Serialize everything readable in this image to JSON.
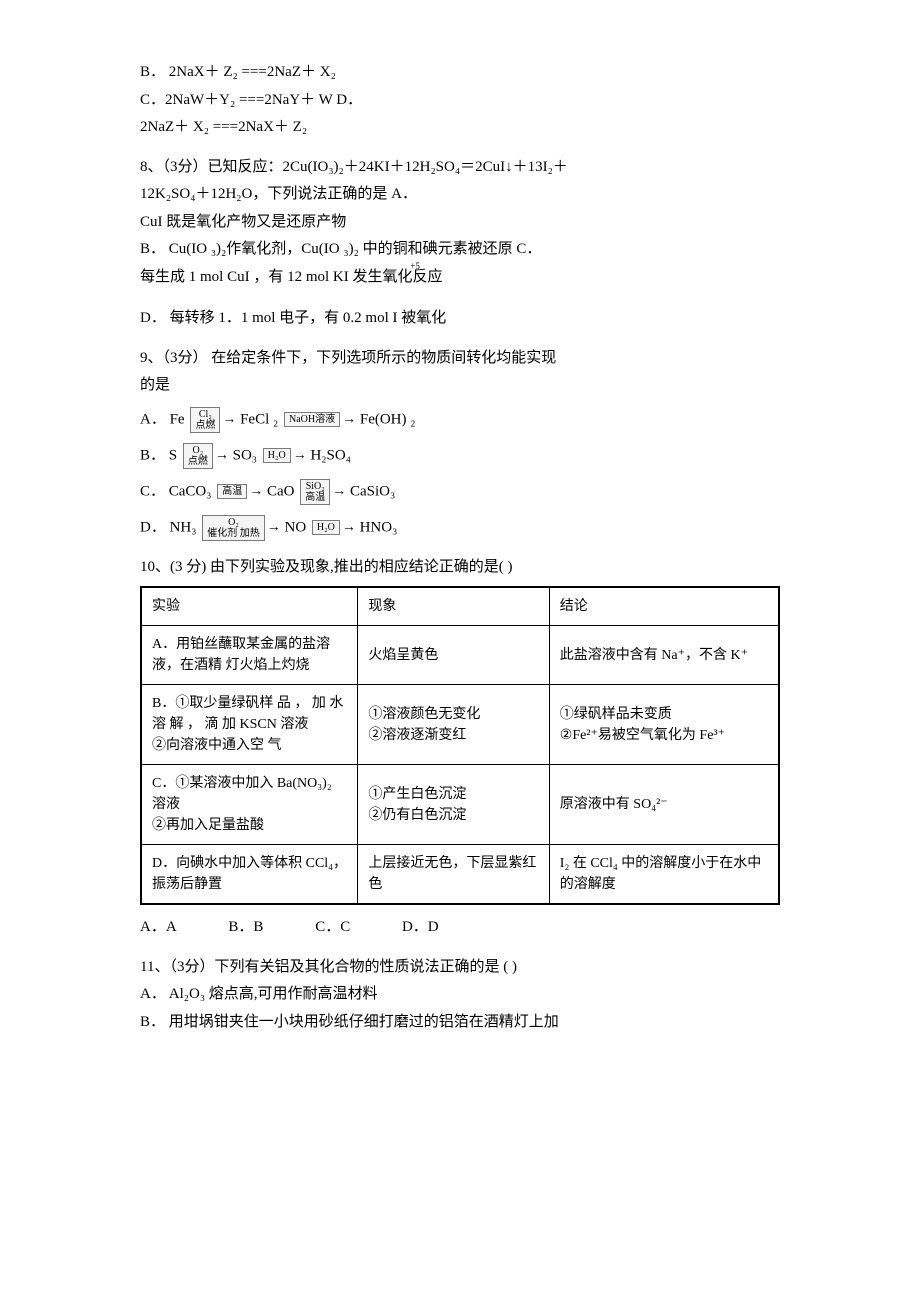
{
  "q7": {
    "optB": "B．  2NaX＋ Z₂ ===2NaZ＋ X₂",
    "optC": "C．2NaW＋Y₂ ===2NaY＋ W D．",
    "optC2": "2NaZ＋ X₂ ===2NaX＋ Z₂"
  },
  "q8": {
    "stem1": "8、（3分）已知反应：2Cu(IO₃)₂＋24KI＋12H₂SO₄＝2CuI↓＋13I₂＋",
    "stem2": "12K₂SO₄＋12H₂O，下列说法正确的是  A．",
    "stem3": "CuI 既是氧化产物又是还原产物",
    "optB": "B．  Cu(IO ₃)₂作氧化剂，Cu(IO ₃)₂ 中的铜和碘元素被还原  C．",
    "optC2": "每生成 1  mol  CuI ，有 12  mol  KI 发生氧化反应",
    "sup": "+5",
    "optD": "D．  每转移 1．1  mol 电子，有 0.2  mol I  被氧化"
  },
  "q9": {
    "stem1": "9、（3分）  在给定条件下，下列选项所示的物质间转化均能实现",
    "stem2": "的是",
    "A_pre": "A．  Fe",
    "A_box1_top": "Cl₂",
    "A_box1_bot": "点燃",
    "A_mid1": "FeCl ₂",
    "A_box2_top": "NaOH溶液",
    "A_box2_bot": "",
    "A_post": "Fe(OH) ₂",
    "B_pre": "B．  S",
    "B_box1_top": "O₂",
    "B_box1_bot": "点燃",
    "B_mid1": "SO₃",
    "B_box2_top": "H₂O",
    "B_box2_bot": "",
    "B_post": "H₂SO₄",
    "C_pre": "C．  CaCO₃",
    "C_box1_top": "",
    "C_box1_bot": "高温",
    "C_mid1": "CaO",
    "C_box2_top": "SiO₂",
    "C_box2_bot": "高温",
    "C_post": "CaSiO₃",
    "D_pre": "D．  NH₃",
    "D_box1_top": "O₂",
    "D_box1_bot": "催化剂 加热",
    "D_mid1": "NO",
    "D_box2_top": "H₂O",
    "D_box2_bot": "",
    "D_post": "HNO₃"
  },
  "q10": {
    "stem": "10、(3 分)    由下列实验及现象,推出的相应结论正确的是(           )",
    "table": {
      "columns": [
        "实验",
        "现象",
        "结论"
      ],
      "col_widths": [
        "34%",
        "30%",
        "36%"
      ],
      "rows": [
        [
          "A．用铂丝蘸取某金属的盐溶液，在酒精  灯火焰上灼烧",
          "火焰呈黄色",
          "此盐溶液中含有 Na⁺，不含    K⁺"
        ],
        [
          "B．①取少量绿矾样  品 ， 加 水 溶 解 ， 滴 加 KSCN  溶液\n②向溶液中通入空  气",
          "①溶液颜色无变化\n②溶液逐渐变红",
          "①绿矾样品未变质\n②Fe²⁺易被空气氧化为    Fe³⁺"
        ],
        [
          "C．①某溶液中加入 Ba(NO₃)₂  溶液\n②再加入足量盐酸",
          "①产生白色沉淀\n②仍有白色沉淀",
          "原溶液中有   SO₄²⁻"
        ],
        [
          "D．向碘水中加入等体积   CCl₄，   振荡后静置",
          "上层接近无色，下层显紫红色",
          "I₂ 在   CCl₄ 中的溶解度小于在水中的溶解度"
        ]
      ]
    },
    "options": {
      "A": "A．A",
      "B": "B．B",
      "C": "C．C",
      "D": "D．D"
    }
  },
  "q11": {
    "stem": "11、（3分）下列有关铝及其化合物的性质说法正确的是           (   )",
    "optA": "A．  Al₂O₃ 熔点高,可用作耐高温材料",
    "optB": "B．  用坩埚钳夹住一小块用砂纸仔细打磨过的铝箔在酒精灯上加"
  }
}
